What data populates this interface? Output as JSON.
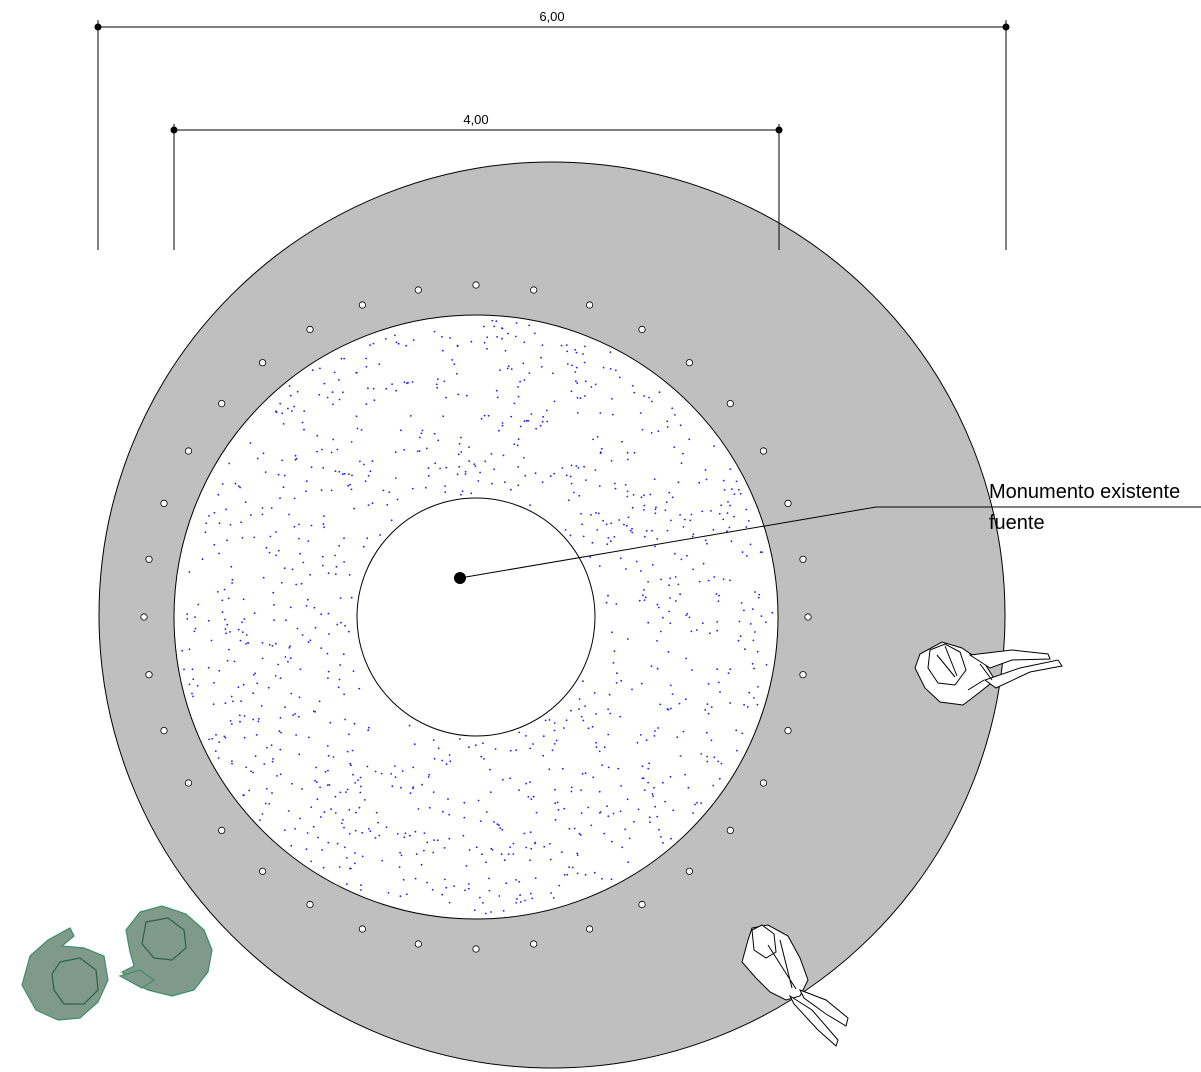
{
  "dimensions": {
    "outer": "6,00",
    "inner": "4,00"
  },
  "annotation": {
    "line1": "Monumento existente",
    "line2": "fuente"
  },
  "colors": {
    "paving": "#bfbfbf",
    "planting_dots": "#1a1aff",
    "tree_fill": "#7f9a8a",
    "tree_stroke": "#3f8f6a",
    "background": "#ffffff"
  },
  "elements": {
    "bollard_count": 36,
    "people_count": 2,
    "trees_count": 2
  }
}
